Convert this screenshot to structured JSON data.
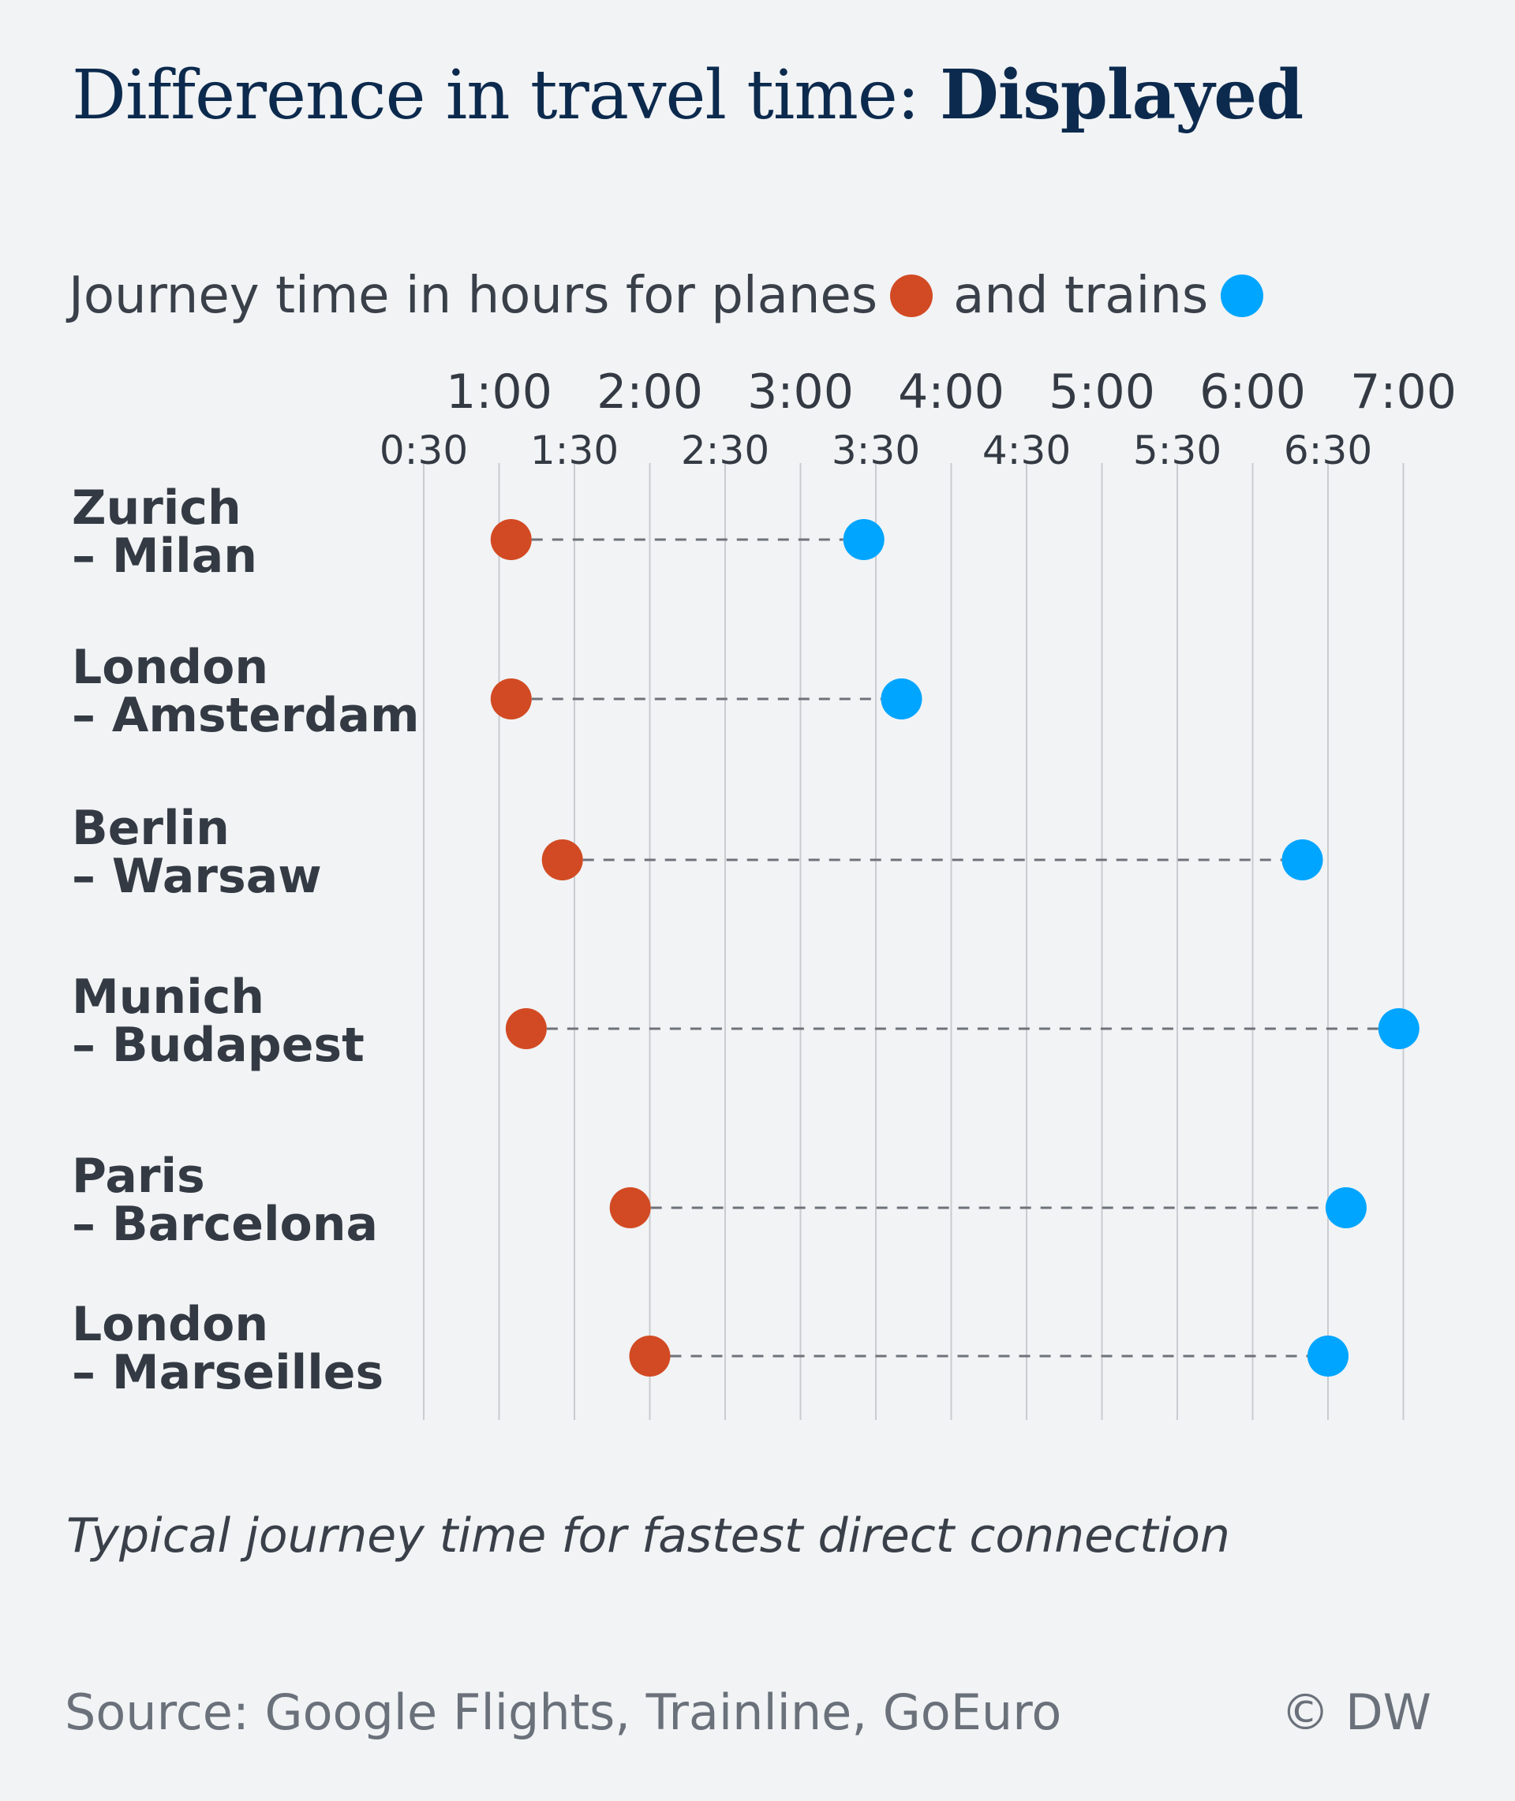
{
  "title": {
    "regular": "Difference in travel time: ",
    "bold": "Displayed"
  },
  "legend": {
    "prefix": "Journey time in hours for planes",
    "middle": "and trains"
  },
  "note": "Typical journey time for fastest direct connection",
  "source": "Source: Google Flights, Trainline, GoEuro",
  "credit": "© DW",
  "colors": {
    "plane": "#d24a23",
    "train": "#00a5ff",
    "gridline": "#c9ccd0",
    "connector": "#6e7379",
    "text": "#343a43",
    "background": "#f1f3f5"
  },
  "chart_data": {
    "type": "dot-plot",
    "x_unit": "hours",
    "xlim": [
      0.5,
      7.0
    ],
    "grid": true,
    "major_ticks": [
      {
        "value": 1.0,
        "label": "1:00"
      },
      {
        "value": 2.0,
        "label": "2:00"
      },
      {
        "value": 3.0,
        "label": "3:00"
      },
      {
        "value": 4.0,
        "label": "4:00"
      },
      {
        "value": 5.0,
        "label": "5:00"
      },
      {
        "value": 6.0,
        "label": "6:00"
      },
      {
        "value": 7.0,
        "label": "7:00"
      }
    ],
    "minor_ticks": [
      {
        "value": 0.5,
        "label": "0:30"
      },
      {
        "value": 1.5,
        "label": "1:30"
      },
      {
        "value": 2.5,
        "label": "2:30"
      },
      {
        "value": 3.5,
        "label": "3:30"
      },
      {
        "value": 4.5,
        "label": "4:30"
      },
      {
        "value": 5.5,
        "label": "5:30"
      },
      {
        "value": 6.5,
        "label": "6:30"
      }
    ],
    "series": [
      {
        "name": "planes",
        "key": "plane"
      },
      {
        "name": "trains",
        "key": "train"
      }
    ],
    "routes": [
      {
        "line1": "Zurich",
        "line2": "– Milan",
        "plane": 1.08,
        "train": 3.42
      },
      {
        "line1": "London",
        "line2": "– Amsterdam",
        "plane": 1.08,
        "train": 3.67
      },
      {
        "line1": "Berlin",
        "line2": "– Warsaw",
        "plane": 1.42,
        "train": 6.33
      },
      {
        "line1": "Munich",
        "line2": "– Budapest",
        "plane": 1.18,
        "train": 6.97
      },
      {
        "line1": "Paris",
        "line2": "– Barcelona",
        "plane": 1.87,
        "train": 6.62
      },
      {
        "line1": "London",
        "line2": "– Marseilles",
        "plane": 2.0,
        "train": 6.5
      }
    ]
  }
}
